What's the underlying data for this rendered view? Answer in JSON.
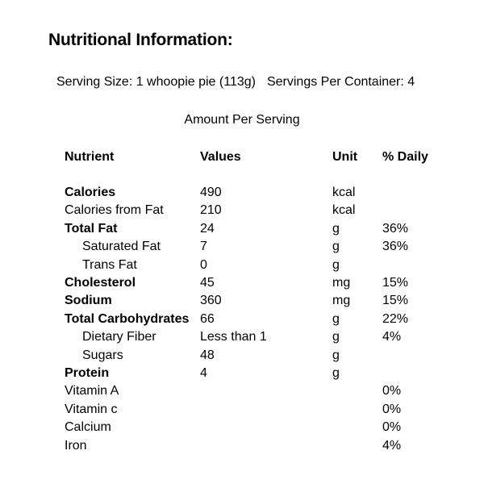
{
  "title": "Nutritional Information:",
  "serving": {
    "size": "Serving Size: 1 whoopie pie (113g)",
    "per_container": "Servings Per Container: 4"
  },
  "amount_per_serving": "Amount Per Serving",
  "headers": {
    "nutrient": "Nutrient",
    "values": "Values",
    "unit": "Unit",
    "daily": "% Daily"
  },
  "rows": [
    {
      "nutrient": "Calories",
      "value": "490",
      "unit": "kcal",
      "daily": "",
      "bold": true,
      "indent": false
    },
    {
      "nutrient": "Calories from Fat",
      "value": "210",
      "unit": "kcal",
      "daily": "",
      "bold": false,
      "indent": false
    },
    {
      "nutrient": "Total Fat",
      "value": "24",
      "unit": "g",
      "daily": "36%",
      "bold": true,
      "indent": false
    },
    {
      "nutrient": "Saturated Fat",
      "value": "7",
      "unit": "g",
      "daily": "36%",
      "bold": false,
      "indent": true
    },
    {
      "nutrient": "Trans Fat",
      "value": "0",
      "unit": "g",
      "daily": "",
      "bold": false,
      "indent": true
    },
    {
      "nutrient": "Cholesterol",
      "value": "45",
      "unit": "mg",
      "daily": "15%",
      "bold": true,
      "indent": false
    },
    {
      "nutrient": "Sodium",
      "value": "360",
      "unit": "mg",
      "daily": "15%",
      "bold": true,
      "indent": false
    },
    {
      "nutrient": "Total Carbohydrates",
      "value": "66",
      "unit": "g",
      "daily": "22%",
      "bold": true,
      "indent": false
    },
    {
      "nutrient": "Dietary Fiber",
      "value": "Less than 1",
      "unit": "g",
      "daily": "4%",
      "bold": false,
      "indent": true
    },
    {
      "nutrient": "Sugars",
      "value": "48",
      "unit": "g",
      "daily": "",
      "bold": false,
      "indent": true
    },
    {
      "nutrient": "Protein",
      "value": "4",
      "unit": "g",
      "daily": "",
      "bold": true,
      "indent": false
    },
    {
      "nutrient": "Vitamin A",
      "value": "",
      "unit": "",
      "daily": "0%",
      "bold": false,
      "indent": false
    },
    {
      "nutrient": "Vitamin c",
      "value": "",
      "unit": "",
      "daily": "0%",
      "bold": false,
      "indent": false
    },
    {
      "nutrient": "Calcium",
      "value": "",
      "unit": "",
      "daily": "0%",
      "bold": false,
      "indent": false
    },
    {
      "nutrient": "Iron",
      "value": "",
      "unit": "",
      "daily": "4%",
      "bold": false,
      "indent": false
    }
  ]
}
